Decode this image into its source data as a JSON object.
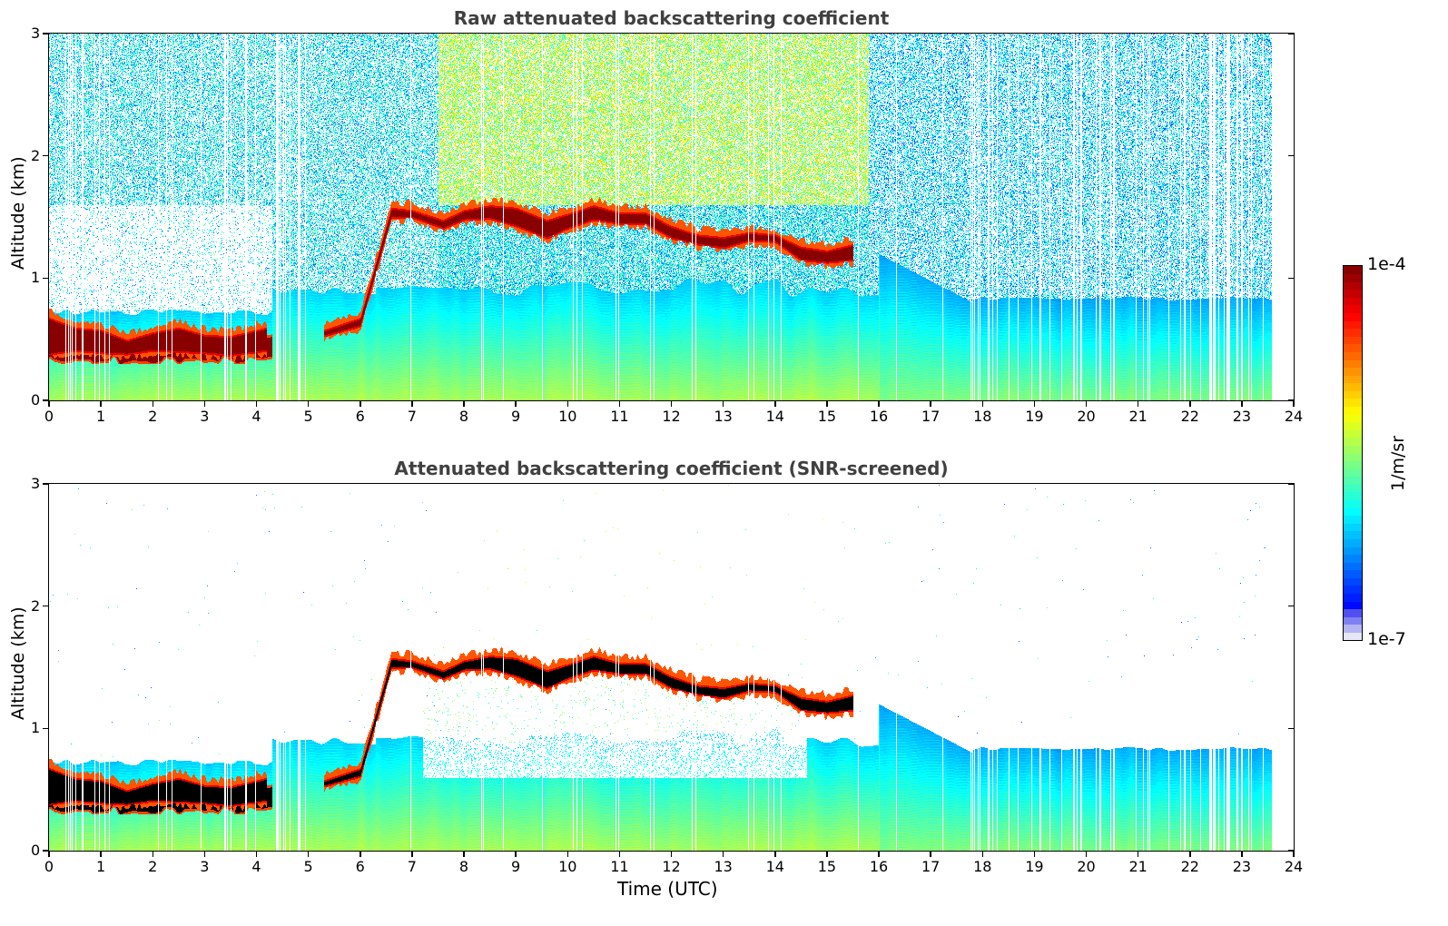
{
  "chart_data": [
    {
      "type": "heatmap",
      "title": "Raw attenuated backscattering coefficient",
      "xlabel": "",
      "ylabel": "Altitude (km)",
      "xlim": [
        0,
        24
      ],
      "ylim": [
        0,
        3
      ],
      "xticks": [
        "0",
        "1",
        "2",
        "3",
        "4",
        "5",
        "6",
        "7",
        "8",
        "9",
        "10",
        "11",
        "12",
        "13",
        "14",
        "15",
        "16",
        "17",
        "18",
        "19",
        "20",
        "21",
        "22",
        "23",
        "24"
      ],
      "yticks": [
        "0",
        "1",
        "2",
        "3"
      ],
      "data_end_hour": 23.6,
      "screened": false,
      "cloud_base_km": [
        {
          "t": 0.0,
          "z": 0.35
        },
        {
          "t": 0.5,
          "z": 0.38
        },
        {
          "t": 1.0,
          "z": 0.36
        },
        {
          "t": 1.5,
          "z": 0.35
        },
        {
          "t": 2.0,
          "z": 0.38
        },
        {
          "t": 2.5,
          "z": 0.37
        },
        {
          "t": 3.0,
          "z": 0.36
        },
        {
          "t": 3.5,
          "z": 0.34
        },
        {
          "t": 4.2,
          "z": 0.38
        },
        {
          "t": 5.3,
          "z": 0.5
        },
        {
          "t": 6.0,
          "z": 0.58
        },
        {
          "t": 6.6,
          "z": 1.47
        },
        {
          "t": 7.0,
          "z": 1.47
        },
        {
          "t": 7.6,
          "z": 1.38
        },
        {
          "t": 8.0,
          "z": 1.45
        },
        {
          "t": 8.5,
          "z": 1.46
        },
        {
          "t": 9.0,
          "z": 1.4
        },
        {
          "t": 9.6,
          "z": 1.3
        },
        {
          "t": 10.0,
          "z": 1.38
        },
        {
          "t": 10.5,
          "z": 1.45
        },
        {
          "t": 11.0,
          "z": 1.42
        },
        {
          "t": 11.5,
          "z": 1.42
        },
        {
          "t": 12.0,
          "z": 1.3
        },
        {
          "t": 12.5,
          "z": 1.25
        },
        {
          "t": 13.0,
          "z": 1.22
        },
        {
          "t": 13.5,
          "z": 1.28
        },
        {
          "t": 14.0,
          "z": 1.27
        },
        {
          "t": 14.5,
          "z": 1.12
        },
        {
          "t": 15.0,
          "z": 1.1
        },
        {
          "t": 15.5,
          "z": 1.12
        }
      ],
      "cloud_top_km": [
        {
          "t": 0.0,
          "z": 0.7
        },
        {
          "t": 0.5,
          "z": 0.62
        },
        {
          "t": 1.0,
          "z": 0.6
        },
        {
          "t": 1.5,
          "z": 0.52
        },
        {
          "t": 2.0,
          "z": 0.58
        },
        {
          "t": 2.5,
          "z": 0.62
        },
        {
          "t": 3.0,
          "z": 0.56
        },
        {
          "t": 3.5,
          "z": 0.55
        },
        {
          "t": 4.2,
          "z": 0.62
        },
        {
          "t": 5.3,
          "z": 0.6
        },
        {
          "t": 6.0,
          "z": 0.7
        },
        {
          "t": 6.6,
          "z": 1.6
        },
        {
          "t": 7.0,
          "z": 1.58
        },
        {
          "t": 7.6,
          "z": 1.5
        },
        {
          "t": 8.0,
          "z": 1.58
        },
        {
          "t": 8.5,
          "z": 1.62
        },
        {
          "t": 9.0,
          "z": 1.6
        },
        {
          "t": 9.6,
          "z": 1.5
        },
        {
          "t": 10.0,
          "z": 1.55
        },
        {
          "t": 10.5,
          "z": 1.62
        },
        {
          "t": 11.0,
          "z": 1.56
        },
        {
          "t": 11.5,
          "z": 1.56
        },
        {
          "t": 12.0,
          "z": 1.45
        },
        {
          "t": 12.5,
          "z": 1.38
        },
        {
          "t": 13.0,
          "z": 1.36
        },
        {
          "t": 13.5,
          "z": 1.4
        },
        {
          "t": 14.0,
          "z": 1.38
        },
        {
          "t": 14.5,
          "z": 1.28
        },
        {
          "t": 15.0,
          "z": 1.25
        },
        {
          "t": 15.5,
          "z": 1.3
        }
      ]
    },
    {
      "type": "heatmap",
      "title": "Attenuated backscattering coefficient (SNR-screened)",
      "xlabel": "Time (UTC)",
      "ylabel": "Altitude (km)",
      "xlim": [
        0,
        24
      ],
      "ylim": [
        0,
        3
      ],
      "xticks": [
        "0",
        "1",
        "2",
        "3",
        "4",
        "5",
        "6",
        "7",
        "8",
        "9",
        "10",
        "11",
        "12",
        "13",
        "14",
        "15",
        "16",
        "17",
        "18",
        "19",
        "20",
        "21",
        "22",
        "23",
        "24"
      ],
      "yticks": [
        "0",
        "1",
        "2",
        "3"
      ],
      "data_end_hour": 23.6,
      "screened": true
    }
  ],
  "colorbar": {
    "label": "1/m/sr",
    "max_label": "1e-4",
    "min_label": "1e-7",
    "vmin": 1e-07,
    "vmax": 0.0001,
    "scale": "log",
    "colormap": "jet",
    "low_colors": [
      "#e6e6f8",
      "#b4b4f5",
      "#8080f2",
      "#5050f0"
    ],
    "above_max_color_screened": "#000000"
  }
}
